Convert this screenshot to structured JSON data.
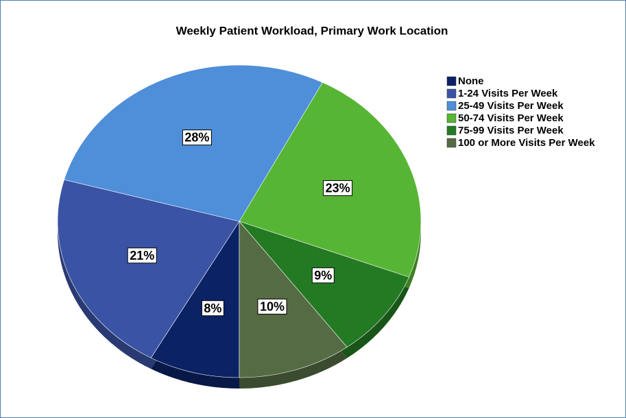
{
  "chart_data": {
    "type": "pie",
    "title": "Weekly Patient Workload, Primary Work Location",
    "categories": [
      "None",
      "1-24 Visits Per Week",
      "25-49 Visits Per Week",
      "50-74 Visits Per Week",
      "75-99 Visits Per Week",
      "100 or More Visits Per Week"
    ],
    "values": [
      8,
      21,
      28,
      23,
      9,
      10
    ],
    "value_labels": [
      "8%",
      "21%",
      "28%",
      "23%",
      "9%",
      "10%"
    ],
    "colors": [
      "#0b2265",
      "#3a53a4",
      "#4f8ed9",
      "#57b535",
      "#237a23",
      "#556b44"
    ],
    "legend": "right"
  }
}
